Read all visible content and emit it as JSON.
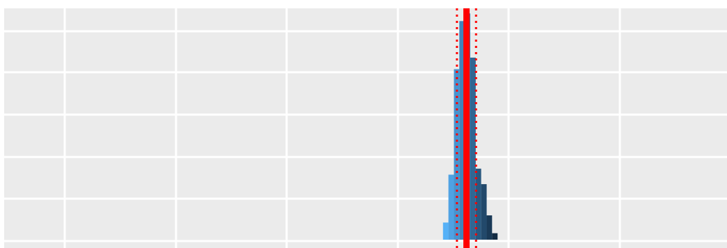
{
  "chart_data": {
    "type": "histogram",
    "title": "",
    "xlabel": "",
    "ylabel": "",
    "grid": true,
    "legend": "none",
    "xlim": [
      0,
      1
    ],
    "ylim": [
      0,
      1
    ],
    "bins": [
      {
        "x0": 0.6071,
        "x1": 0.6146,
        "count": 0.074
      },
      {
        "x0": 0.6146,
        "x1": 0.6222,
        "count": 0.281
      },
      {
        "x0": 0.6222,
        "x1": 0.6297,
        "count": 0.737
      },
      {
        "x0": 0.6297,
        "x1": 0.6373,
        "count": 0.945
      },
      {
        "x0": 0.6373,
        "x1": 0.6448,
        "count": 0.978
      },
      {
        "x0": 0.6448,
        "x1": 0.6524,
        "count": 0.787
      },
      {
        "x0": 0.6524,
        "x1": 0.6599,
        "count": 0.307
      },
      {
        "x0": 0.6599,
        "x1": 0.6675,
        "count": 0.24
      },
      {
        "x0": 0.6675,
        "x1": 0.675,
        "count": 0.105
      },
      {
        "x0": 0.675,
        "x1": 0.6826,
        "count": 0.028
      }
    ],
    "reference_lines": [
      {
        "name": "center",
        "x": 0.6396,
        "style": "solid",
        "color": "#ff0000"
      },
      {
        "name": "lower-bound",
        "x": 0.6264,
        "style": "dotted",
        "color": "#ff0000"
      },
      {
        "name": "upper-bound",
        "x": 0.6528,
        "style": "dotted",
        "color": "#ff0000"
      }
    ]
  },
  "colors": {
    "panel_background": "#ebebeb",
    "gridline": "#ffffff",
    "bar_light": "#56b1f7",
    "bar_dark": "#132b43",
    "reference_line": "#ff0000"
  }
}
